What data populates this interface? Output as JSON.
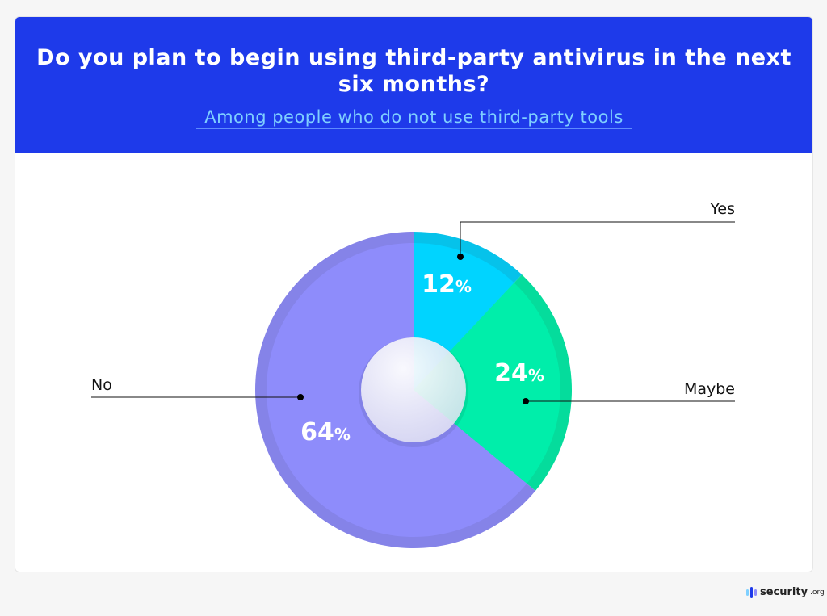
{
  "chart_data": {
    "type": "pie",
    "title": "Do you plan to begin using third-party antivirus in the next six months?",
    "subtitle": "Among people who do not use third-party tools",
    "slices": [
      {
        "label": "Yes",
        "value": 12,
        "display": "12",
        "color": "#00d4ff",
        "edge": "#06c2ea"
      },
      {
        "label": "Maybe",
        "value": 24,
        "display": "24",
        "color": "#00eeaa",
        "edge": "#05dc9c"
      },
      {
        "label": "No",
        "value": 64,
        "display": "64",
        "color": "#8e8cfb",
        "edge": "#8583e8"
      }
    ],
    "unit": "%"
  },
  "header_color": "#1e3aea",
  "brand": {
    "name": "security",
    "suffix": ".org"
  }
}
